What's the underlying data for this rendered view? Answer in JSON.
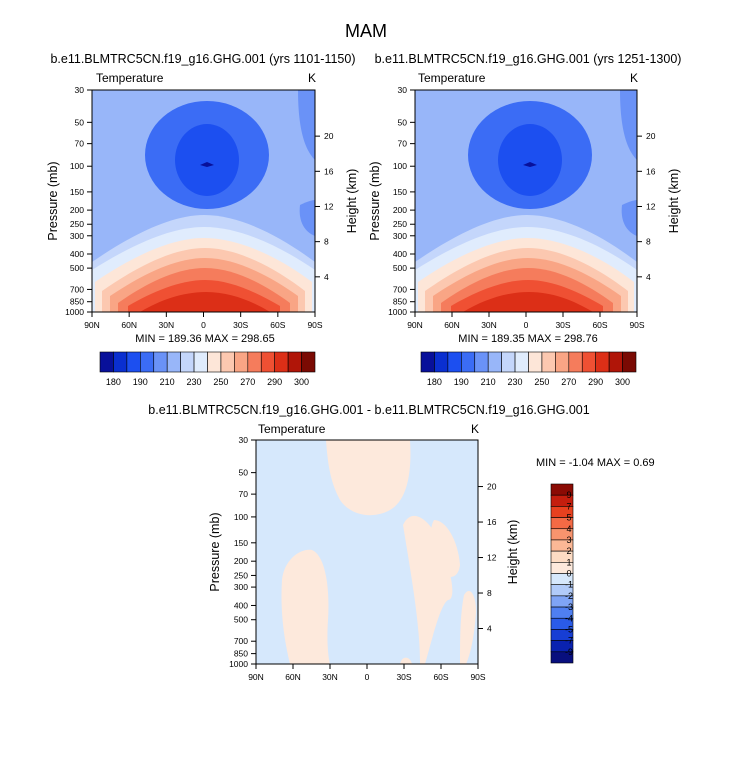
{
  "figure": {
    "title": "MAM"
  },
  "chart_data": [
    {
      "type": "heatmap",
      "title": "b.e11.BLMTRC5CN.f19_g16.GHG.001 (yrs 1101-1150)",
      "left_label": "Temperature",
      "right_label": "K",
      "xlabel": "",
      "ylabel": "Pressure (mb)",
      "y2label": "Height (km)",
      "x_ticks": [
        "90N",
        "60N",
        "30N",
        "0",
        "30S",
        "60S",
        "90S"
      ],
      "y_ticks": [
        "30",
        "50",
        "70",
        "100",
        "150",
        "200",
        "250",
        "300",
        "400",
        "500",
        "700",
        "850",
        "1000"
      ],
      "y2_ticks": [
        "20",
        "16",
        "12",
        "8",
        "4"
      ],
      "stats": "MIN = 189.36  MAX = 298.65",
      "colorbar_labels": [
        "180",
        "190",
        "210",
        "230",
        "250",
        "270",
        "290",
        "300"
      ]
    },
    {
      "type": "heatmap",
      "title": "b.e11.BLMTRC5CN.f19_g16.GHG.001 (yrs 1251-1300)",
      "left_label": "Temperature",
      "right_label": "K",
      "xlabel": "",
      "ylabel": "Pressure (mb)",
      "y2label": "Height (km)",
      "x_ticks": [
        "90N",
        "60N",
        "30N",
        "0",
        "30S",
        "60S",
        "90S"
      ],
      "y_ticks": [
        "30",
        "50",
        "70",
        "100",
        "150",
        "200",
        "250",
        "300",
        "400",
        "500",
        "700",
        "850",
        "1000"
      ],
      "y2_ticks": [
        "20",
        "16",
        "12",
        "8",
        "4"
      ],
      "stats": "MIN = 189.35  MAX = 298.76",
      "colorbar_labels": [
        "180",
        "190",
        "210",
        "230",
        "250",
        "270",
        "290",
        "300"
      ]
    },
    {
      "type": "heatmap",
      "title": "b.e11.BLMTRC5CN.f19_g16.GHG.001 - b.e11.BLMTRC5CN.f19_g16.GHG.001",
      "left_label": "Temperature",
      "right_label": "K",
      "xlabel": "",
      "ylabel": "Pressure (mb)",
      "y2label": "Height (km)",
      "x_ticks": [
        "90N",
        "60N",
        "30N",
        "0",
        "30S",
        "60S",
        "90S"
      ],
      "y_ticks": [
        "30",
        "50",
        "70",
        "100",
        "150",
        "200",
        "250",
        "300",
        "400",
        "500",
        "700",
        "850",
        "1000"
      ],
      "y2_ticks": [
        "20",
        "16",
        "12",
        "8",
        "4"
      ],
      "stats": "MIN = -1.04  MAX =  0.69",
      "colorbar_labels": [
        "9",
        "7",
        "5",
        "4",
        "3",
        "2",
        "1",
        "0",
        "-1",
        "-2",
        "-3",
        "-4",
        "-5",
        "-7",
        "-9"
      ]
    }
  ],
  "colors": {
    "temp_scale": [
      "#08109a",
      "#0a2fd0",
      "#1c4ff0",
      "#3b6cf5",
      "#6a92f7",
      "#98b6f9",
      "#c4d6fb",
      "#e0ecfd",
      "#fde6d8",
      "#fcc8b0",
      "#f9a585",
      "#f57c5c",
      "#ef5033",
      "#dc2f17",
      "#b01508",
      "#7a0a03"
    ],
    "diff_scale": [
      "#8b0b04",
      "#c41e0e",
      "#e8411f",
      "#f46a45",
      "#f8946e",
      "#fbb896",
      "#fddcc4",
      "#fde9dc",
      "#d6e8fc",
      "#b1cbf9",
      "#7fa4f5",
      "#4f7ff1",
      "#2a5be8",
      "#173ed4",
      "#0a22b0",
      "#080f7e"
    ]
  }
}
